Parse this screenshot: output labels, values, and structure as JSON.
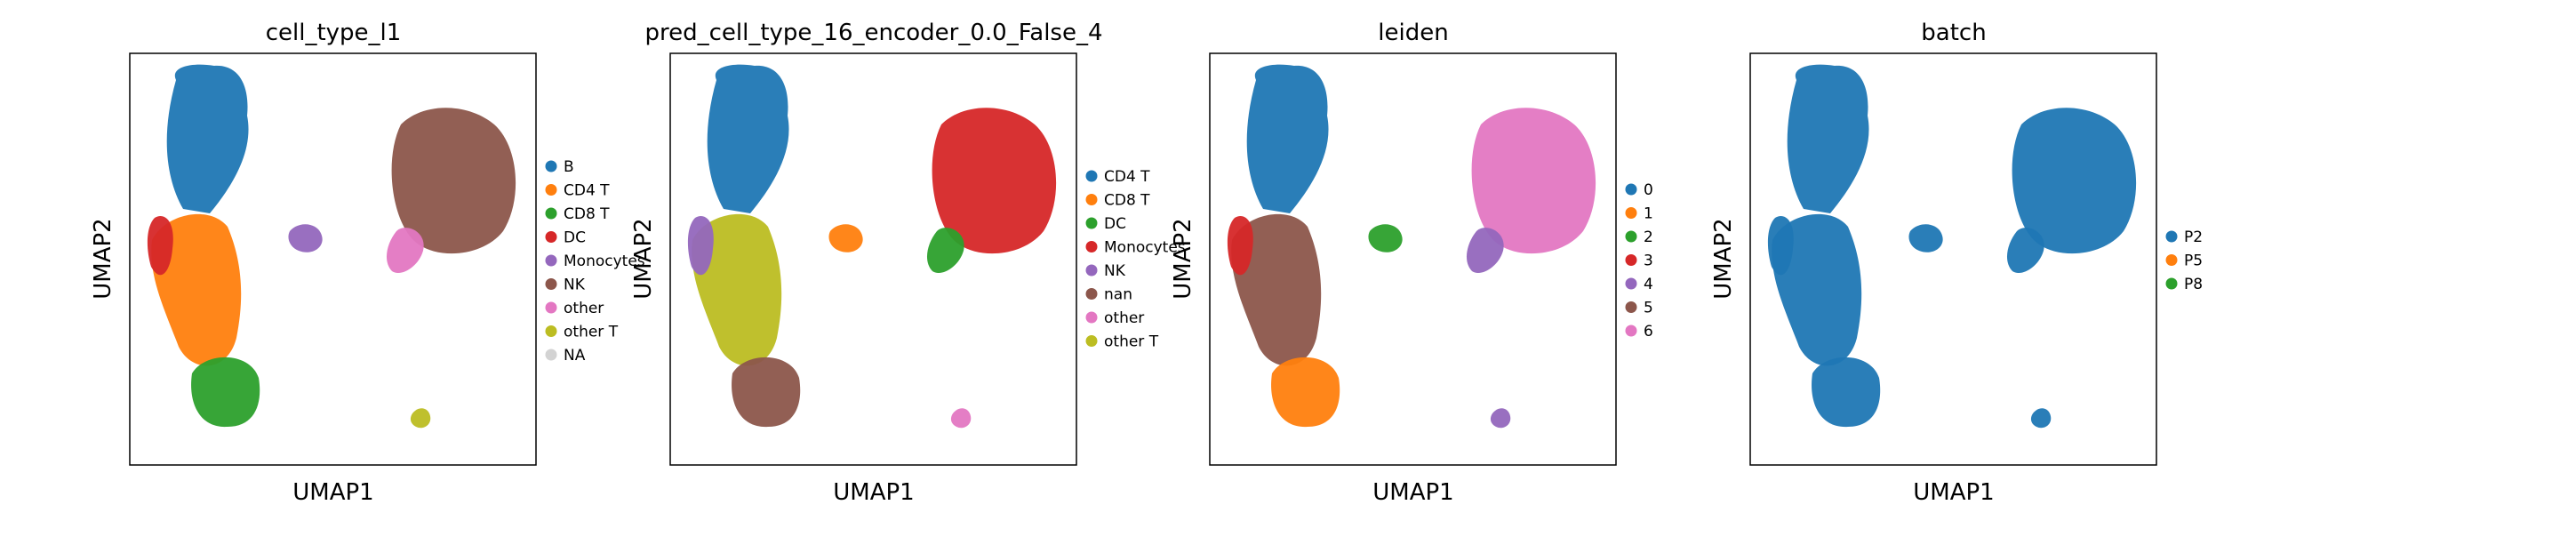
{
  "colors": {
    "tab10": [
      "#1f77b4",
      "#ff7f0e",
      "#2ca02c",
      "#d62728",
      "#9467bd",
      "#8c564b",
      "#e377c2",
      "#bcbd22"
    ],
    "na": "#d3d3d3",
    "frame": "#000000"
  },
  "chart_data": [
    {
      "type": "scatter",
      "title": "cell_type_l1",
      "xlabel": "UMAP1",
      "ylabel": "UMAP2",
      "grid": false,
      "legend_position": "right",
      "legend": [
        "B",
        "CD4 T",
        "CD8 T",
        "DC",
        "Monocytes",
        "NK",
        "other",
        "other T",
        "NA"
      ],
      "legend_colors": [
        "#1f77b4",
        "#ff7f0e",
        "#2ca02c",
        "#d62728",
        "#9467bd",
        "#8c564b",
        "#e377c2",
        "#bcbd22",
        "#d3d3d3"
      ],
      "region_labels": [
        "B",
        "CD4 T",
        "CD8 T",
        "DC",
        "Monocytes",
        "NK",
        "other",
        "other T"
      ]
    },
    {
      "type": "scatter",
      "title": "pred_cell_type_16_encoder_0.0_False_4",
      "xlabel": "UMAP1",
      "ylabel": "UMAP2",
      "grid": false,
      "legend_position": "right",
      "legend": [
        "CD4 T",
        "CD8 T",
        "DC",
        "Monocytes",
        "NK",
        "nan",
        "other",
        "other T"
      ],
      "legend_colors": [
        "#1f77b4",
        "#ff7f0e",
        "#2ca02c",
        "#d62728",
        "#9467bd",
        "#8c564b",
        "#e377c2",
        "#bcbd22"
      ],
      "region_labels": [
        "CD4 T",
        "other T",
        "nan",
        "NK",
        "CD8 T",
        "Monocytes",
        "DC",
        "other"
      ]
    },
    {
      "type": "scatter",
      "title": "leiden",
      "xlabel": "UMAP1",
      "ylabel": "UMAP2",
      "grid": false,
      "legend_position": "right",
      "legend": [
        "0",
        "1",
        "2",
        "3",
        "4",
        "5",
        "6"
      ],
      "legend_colors": [
        "#1f77b4",
        "#ff7f0e",
        "#2ca02c",
        "#d62728",
        "#9467bd",
        "#8c564b",
        "#e377c2"
      ],
      "region_labels": [
        "0",
        "5",
        "1",
        "3",
        "2",
        "6",
        "4",
        "4"
      ]
    },
    {
      "type": "scatter",
      "title": "batch",
      "xlabel": "UMAP1",
      "ylabel": "UMAP2",
      "grid": false,
      "legend_position": "right",
      "legend": [
        "P2",
        "P5",
        "P8"
      ],
      "legend_colors": [
        "#1f77b4",
        "#ff7f0e",
        "#2ca02c"
      ],
      "region_labels": [
        "P2",
        "P2",
        "P2",
        "P2",
        "P2",
        "P2",
        "P2",
        "P2"
      ]
    }
  ]
}
